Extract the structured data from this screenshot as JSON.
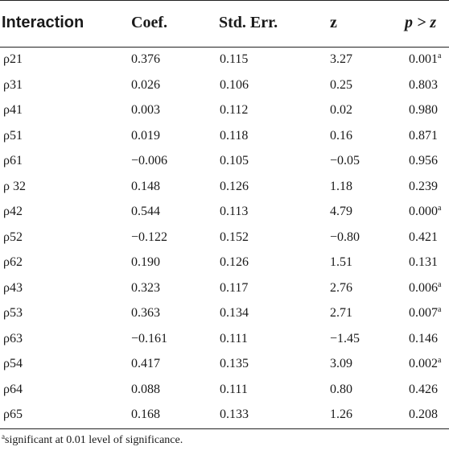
{
  "table": {
    "headers": {
      "interaction": "Interaction",
      "coef": "Coef.",
      "std_err": "Std. Err.",
      "z": "z",
      "p": "p > z"
    },
    "rows": [
      {
        "interaction": "ρ21",
        "coef": "0.376",
        "std_err": "0.115",
        "z": "3.27",
        "p": "0.001",
        "p_note": "a"
      },
      {
        "interaction": "ρ31",
        "coef": "0.026",
        "std_err": "0.106",
        "z": "0.25",
        "p": "0.803",
        "p_note": ""
      },
      {
        "interaction": "ρ41",
        "coef": "0.003",
        "std_err": "0.112",
        "z": "0.02",
        "p": "0.980",
        "p_note": ""
      },
      {
        "interaction": "ρ51",
        "coef": "0.019",
        "std_err": "0.118",
        "z": "0.16",
        "p": "0.871",
        "p_note": ""
      },
      {
        "interaction": "ρ61",
        "coef": "−0.006",
        "std_err": "0.105",
        "z": "−0.05",
        "p": "0.956",
        "p_note": ""
      },
      {
        "interaction": "ρ 32",
        "coef": "0.148",
        "std_err": "0.126",
        "z": "1.18",
        "p": "0.239",
        "p_note": ""
      },
      {
        "interaction": "ρ42",
        "coef": "0.544",
        "std_err": "0.113",
        "z": "4.79",
        "p": "0.000",
        "p_note": "a"
      },
      {
        "interaction": "ρ52",
        "coef": "−0.122",
        "std_err": "0.152",
        "z": "−0.80",
        "p": "0.421",
        "p_note": ""
      },
      {
        "interaction": "ρ62",
        "coef": "0.190",
        "std_err": "0.126",
        "z": "1.51",
        "p": "0.131",
        "p_note": ""
      },
      {
        "interaction": "ρ43",
        "coef": "0.323",
        "std_err": "0.117",
        "z": "2.76",
        "p": "0.006",
        "p_note": "a"
      },
      {
        "interaction": "ρ53",
        "coef": "0.363",
        "std_err": "0.134",
        "z": "2.71",
        "p": "0.007",
        "p_note": "a"
      },
      {
        "interaction": "ρ63",
        "coef": "−0.161",
        "std_err": "0.111",
        "z": "−1.45",
        "p": "0.146",
        "p_note": ""
      },
      {
        "interaction": "ρ54",
        "coef": "0.417",
        "std_err": "0.135",
        "z": "3.09",
        "p": "0.002",
        "p_note": "a"
      },
      {
        "interaction": "ρ64",
        "coef": "0.088",
        "std_err": "0.111",
        "z": "0.80",
        "p": "0.426",
        "p_note": ""
      },
      {
        "interaction": "ρ65",
        "coef": "0.168",
        "std_err": "0.133",
        "z": "1.26",
        "p": "0.208",
        "p_note": ""
      }
    ],
    "footnote": {
      "marker": "a",
      "text": "significant at 0.01 level of significance."
    }
  }
}
